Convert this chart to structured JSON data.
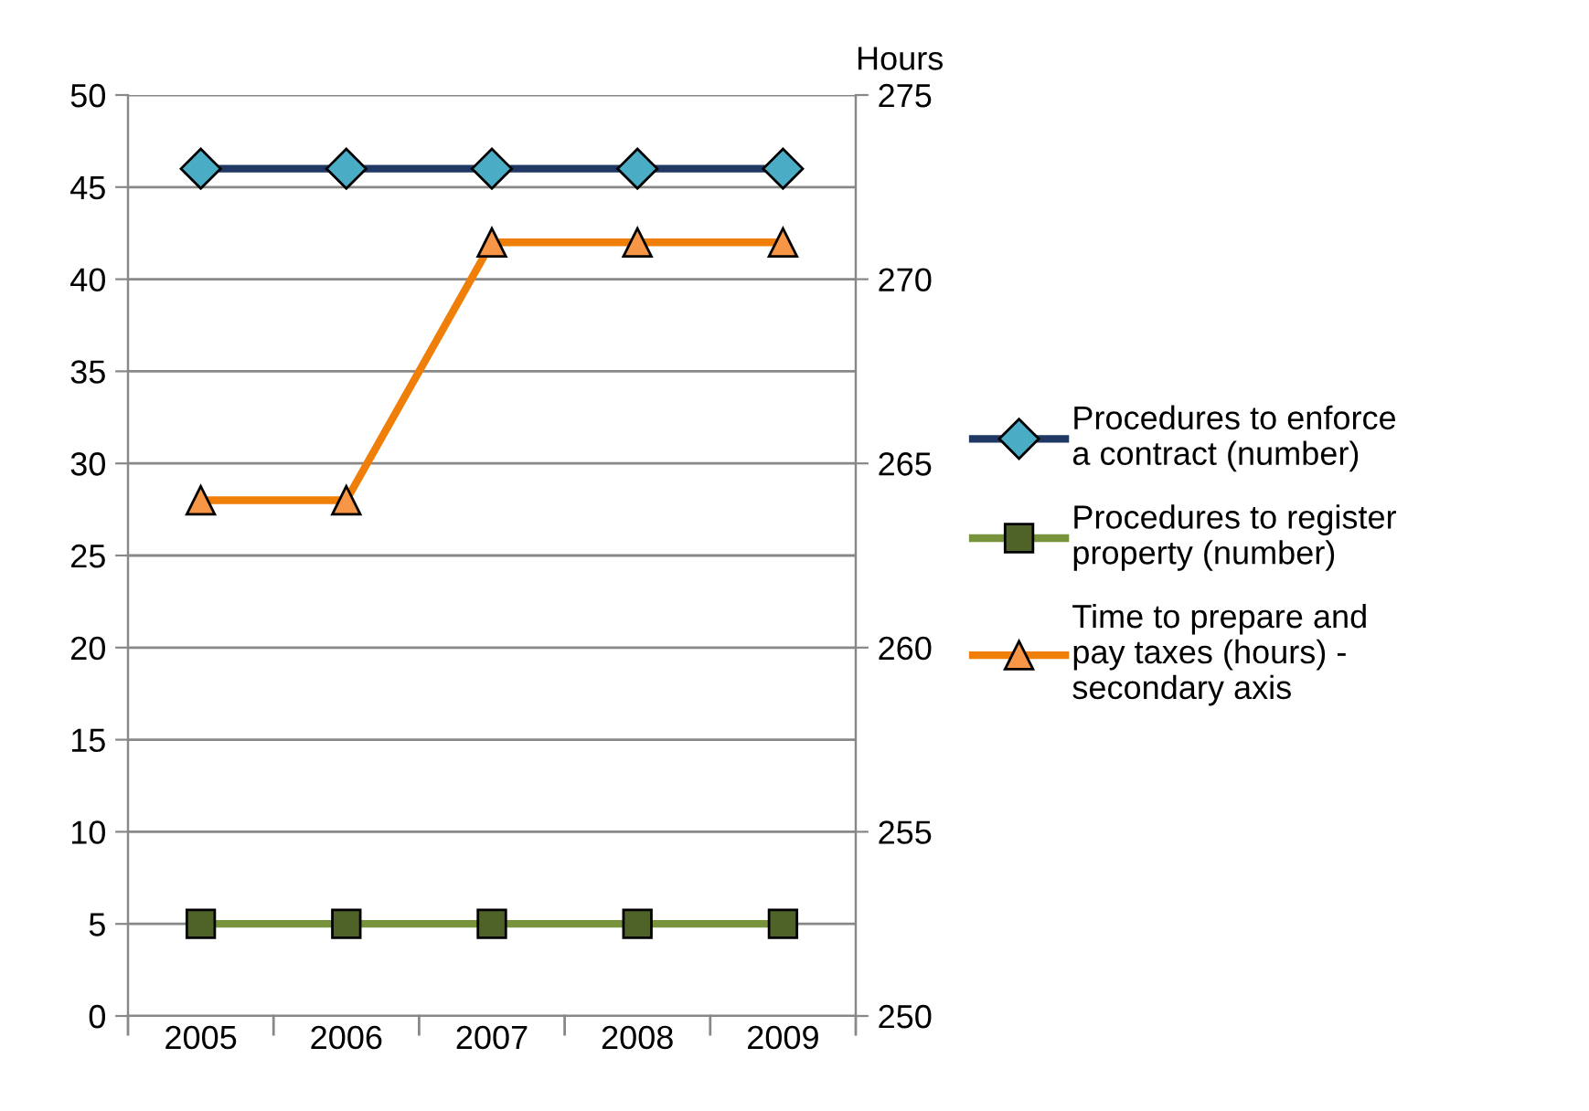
{
  "chart_data": {
    "type": "line",
    "categories": [
      "2005",
      "2006",
      "2007",
      "2008",
      "2009"
    ],
    "series": [
      {
        "name": "Procedures to enforce a contract (number)",
        "color": "#1f3864",
        "colors": [
          "#4bacc6",
          "#4bacc6",
          "#4bacc6",
          "#4bacc6",
          "#4bacc6"
        ],
        "marker": "diamond",
        "values": [
          46,
          46,
          46,
          46,
          46
        ]
      },
      {
        "name": "Procedures to register property (number)",
        "color": "#77933c",
        "colors": [
          "#4f6228",
          "#4f6228",
          "#4f6228",
          "#4f6228",
          "#4f6228"
        ],
        "marker": "square",
        "values": [
          5,
          5,
          5,
          5,
          5
        ]
      },
      {
        "name": "Time to prepare and pay taxes (hours) - secondary axis",
        "color": "#f07f09",
        "colors": [
          "#f79646",
          "#f79646",
          "#f79646",
          "#f79646",
          "#f79646"
        ],
        "marker": "triangle",
        "axis": "y2",
        "values": [
          264,
          264,
          271,
          271,
          271
        ]
      }
    ],
    "y2label": "Hours",
    "ylim": [
      0,
      50
    ],
    "yticks": [
      0,
      5,
      10,
      15,
      20,
      25,
      30,
      35,
      40,
      45,
      50
    ],
    "y2lim": [
      250,
      275
    ],
    "y2ticks": [
      250,
      255,
      260,
      265,
      270,
      275
    ],
    "grid": "y",
    "legend": "right",
    "line_style": "solid"
  }
}
